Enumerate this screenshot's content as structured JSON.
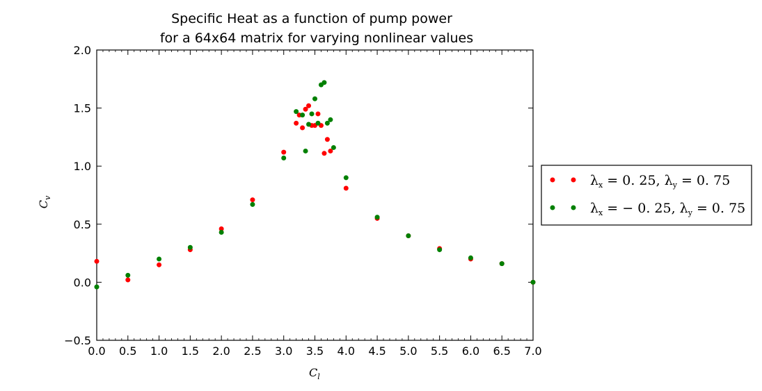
{
  "chart_data": {
    "type": "scatter",
    "title_lines": [
      "Specific Heat as a function of pump power",
      "for a 64x64 matrix for varying nonlinear values"
    ],
    "xlabel": "C_l",
    "ylabel": "C_v",
    "xlim": [
      0.0,
      7.0
    ],
    "ylim": [
      -0.5,
      2.0
    ],
    "x_ticks": [
      0.0,
      0.5,
      1.0,
      1.5,
      2.0,
      2.5,
      3.0,
      3.5,
      4.0,
      4.5,
      5.0,
      5.5,
      6.0,
      6.5,
      7.0
    ],
    "x_tick_labels": [
      "0.0",
      "0.5",
      "1.0",
      "1.5",
      "2.0",
      "2.5",
      "3.0",
      "3.5",
      "4.0",
      "4.5",
      "5.0",
      "5.5",
      "6.0",
      "6.5",
      "7.0"
    ],
    "y_ticks": [
      -0.5,
      0.0,
      0.5,
      1.0,
      1.5,
      2.0
    ],
    "y_tick_labels": [
      "−0.5",
      "0.0",
      "0.5",
      "1.0",
      "1.5",
      "2.0"
    ],
    "legend_placement": "outside-right",
    "series": [
      {
        "name": "λₓ = 0.25, λᵧ = 0.75",
        "color": "#ff0000",
        "points": [
          [
            0.0,
            0.18
          ],
          [
            0.5,
            0.02
          ],
          [
            1.0,
            0.15
          ],
          [
            1.5,
            0.28
          ],
          [
            2.0,
            0.46
          ],
          [
            2.5,
            0.71
          ],
          [
            3.0,
            1.12
          ],
          [
            3.2,
            1.37
          ],
          [
            3.25,
            1.44
          ],
          [
            3.3,
            1.33
          ],
          [
            3.35,
            1.49
          ],
          [
            3.4,
            1.52
          ],
          [
            3.45,
            1.35
          ],
          [
            3.5,
            1.35
          ],
          [
            3.55,
            1.45
          ],
          [
            3.6,
            1.35
          ],
          [
            3.65,
            1.11
          ],
          [
            3.7,
            1.23
          ],
          [
            3.75,
            1.13
          ],
          [
            4.0,
            0.81
          ],
          [
            4.5,
            0.55
          ],
          [
            5.0,
            0.4
          ],
          [
            5.5,
            0.29
          ],
          [
            6.0,
            0.2
          ],
          [
            6.5,
            0.16
          ],
          [
            7.0,
            0.0
          ]
        ]
      },
      {
        "name": "λₓ = −0.25, λᵧ = 0.75",
        "color": "#008000",
        "points": [
          [
            0.0,
            -0.04
          ],
          [
            0.5,
            0.06
          ],
          [
            1.0,
            0.2
          ],
          [
            1.5,
            0.3
          ],
          [
            2.0,
            0.43
          ],
          [
            2.5,
            0.67
          ],
          [
            3.0,
            1.07
          ],
          [
            3.2,
            1.47
          ],
          [
            3.3,
            1.44
          ],
          [
            3.35,
            1.13
          ],
          [
            3.4,
            1.36
          ],
          [
            3.45,
            1.45
          ],
          [
            3.5,
            1.58
          ],
          [
            3.55,
            1.37
          ],
          [
            3.6,
            1.7
          ],
          [
            3.65,
            1.72
          ],
          [
            3.7,
            1.37
          ],
          [
            3.75,
            1.4
          ],
          [
            3.8,
            1.16
          ],
          [
            4.0,
            0.9
          ],
          [
            4.5,
            0.56
          ],
          [
            5.0,
            0.4
          ],
          [
            5.5,
            0.28
          ],
          [
            6.0,
            0.21
          ],
          [
            6.5,
            0.16
          ],
          [
            7.0,
            0.0
          ]
        ]
      }
    ]
  }
}
